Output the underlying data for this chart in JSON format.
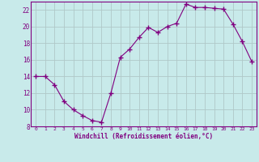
{
  "x": [
    0,
    1,
    2,
    3,
    4,
    5,
    6,
    7,
    8,
    9,
    10,
    11,
    12,
    13,
    14,
    15,
    16,
    17,
    18,
    19,
    20,
    21,
    22,
    23
  ],
  "y": [
    14,
    14,
    13,
    11,
    10,
    9.3,
    8.7,
    8.5,
    12,
    16.3,
    17.3,
    18.7,
    19.9,
    19.3,
    20,
    20.4,
    22.7,
    22.3,
    22.3,
    22.2,
    22.1,
    20.3,
    18.2,
    15.8
  ],
  "line_color": "#800080",
  "marker": "+",
  "marker_size": 4,
  "bg_color": "#c8eaea",
  "grid_color": "#b0c8c8",
  "xlabel": "Windchill (Refroidissement éolien,°C)",
  "xlabel_color": "#800080",
  "tick_color": "#800080",
  "spine_color": "#800080",
  "ylim": [
    8,
    23
  ],
  "xlim": [
    -0.5,
    23.5
  ],
  "yticks": [
    8,
    10,
    12,
    14,
    16,
    18,
    20,
    22
  ],
  "xticks": [
    0,
    1,
    2,
    3,
    4,
    5,
    6,
    7,
    8,
    9,
    10,
    11,
    12,
    13,
    14,
    15,
    16,
    17,
    18,
    19,
    20,
    21,
    22,
    23
  ],
  "figsize": [
    3.2,
    2.0
  ],
  "dpi": 100
}
